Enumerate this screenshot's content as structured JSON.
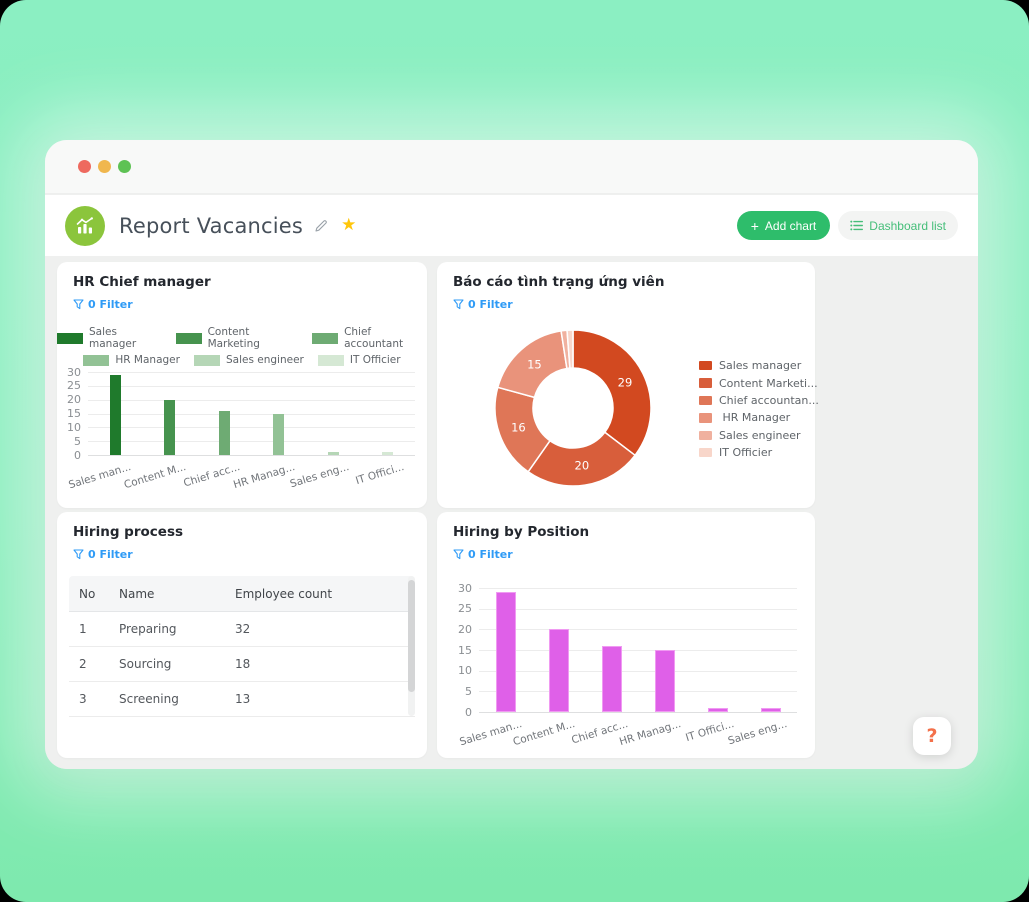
{
  "colors": {
    "background_mint": "#8BEFC2",
    "accent_green": "#2EBD6B",
    "dashboard_list_green": "#45BE79",
    "filter_blue": "#2F9BF6",
    "star_yellow": "#FFC60B",
    "help_orange": "#F3704A",
    "app_icon_green": "#8BC53C"
  },
  "window": {
    "traffic_lights": [
      {
        "name": "close",
        "color": "#EE6A5F"
      },
      {
        "name": "minimize",
        "color": "#F0B74E"
      },
      {
        "name": "zoom",
        "color": "#5EC254"
      }
    ],
    "header": {
      "title": "Report Vacancies",
      "add_chart_plus": "+",
      "add_chart_label": "Add chart",
      "dashboard_list_label": "Dashboard list"
    },
    "help_button": "?"
  },
  "cards": [
    {
      "title": "HR Chief manager",
      "filter": "0 Filter"
    },
    {
      "title": "Báo cáo tình trạng ứng viên",
      "filter": "0 Filter"
    },
    {
      "title": "Hiring process",
      "filter": "0 Filter"
    },
    {
      "title": "Hiring by Position",
      "filter": "0 Filter"
    }
  ],
  "chart_data": [
    {
      "type": "bar",
      "title": "HR Chief manager",
      "categories": [
        "Sales man...",
        "Content M...",
        "Chief acc...",
        "HR Manag...",
        "Sales eng...",
        "IT Offici..."
      ],
      "values": [
        29,
        20,
        16,
        15,
        1,
        1
      ],
      "bar_colors": [
        "#1F7A2C",
        "#46934E",
        "#6EAB73",
        "#92C295",
        "#B5D6B6",
        "#D5E8D4"
      ],
      "legend": [
        "Sales manager",
        "Content Marketing",
        "Chief accountant",
        "HR Manager",
        "Sales engineer",
        "IT Officier"
      ],
      "legend_position": "top",
      "xlabel": "",
      "ylabel": "",
      "ylim": [
        0,
        30
      ],
      "yticks": [
        0,
        5,
        10,
        15,
        20,
        25,
        30
      ],
      "grid": true
    },
    {
      "type": "pie",
      "title": "Báo cáo tình trạng ứng viên",
      "donut": true,
      "labels": [
        "Sales manager",
        "Content Marketi...",
        "Chief accountan...",
        " HR Manager",
        "Sales engineer",
        "IT Officier"
      ],
      "values": [
        29,
        20,
        16,
        15,
        1,
        1
      ],
      "visible_slice_value_labels": [
        29,
        20,
        16,
        15
      ],
      "colors": [
        "#D24920",
        "#D85E3B",
        "#DF7657",
        "#E9937B",
        "#F0B19F",
        "#F8D6CA"
      ],
      "legend_position": "right"
    },
    {
      "type": "table",
      "title": "Hiring process",
      "columns": [
        "No",
        "Name",
        "Employee count"
      ],
      "rows": [
        [
          "1",
          "Preparing",
          "32"
        ],
        [
          "2",
          "Sourcing",
          "18"
        ],
        [
          "3",
          "Screening",
          "13"
        ]
      ]
    },
    {
      "type": "bar",
      "title": "Hiring by Position",
      "categories": [
        "Sales man...",
        "Content M...",
        "Chief acc...",
        "HR Manag...",
        "IT Offici...",
        "Sales eng..."
      ],
      "values": [
        29,
        20,
        16,
        15,
        1,
        1
      ],
      "bar_colors": [
        "#DF60E8"
      ],
      "bar_border_color": "#F09AF2",
      "legend_position": "none",
      "xlabel": "",
      "ylabel": "",
      "ylim": [
        0,
        30
      ],
      "yticks": [
        0,
        5,
        10,
        15,
        20,
        25,
        30
      ],
      "grid": true
    }
  ]
}
